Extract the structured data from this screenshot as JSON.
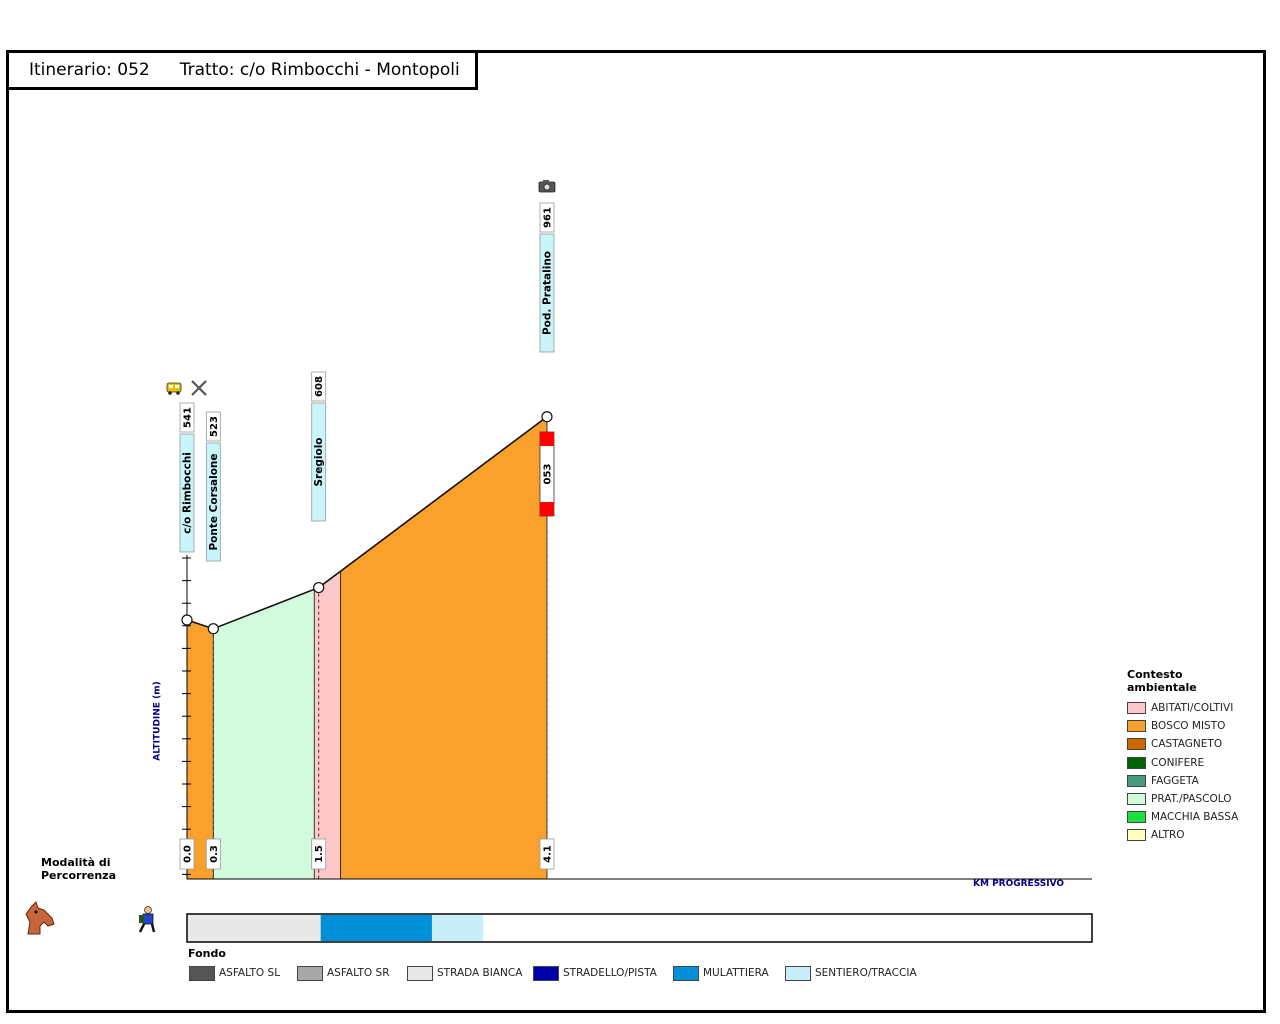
{
  "header": {
    "itinerary": "Itinerario: 052",
    "stretch": "Tratto: c/o Rimbocchi - Montopoli"
  },
  "chart_data": {
    "type": "area",
    "xlabel": "KM PROGRESSIVO",
    "ylabel": "ALTITUDINE (m)",
    "points": [
      {
        "km": 0.0,
        "km_label": "0.0",
        "altitude": 541,
        "name": "c/o Rimbocchi",
        "icons": [
          "bus-icon",
          "crossed-tools-icon"
        ]
      },
      {
        "km": 0.3,
        "km_label": "0.3",
        "altitude": 523,
        "name": "Ponte Corsalone",
        "icons": []
      },
      {
        "km": 1.5,
        "km_label": "1.5",
        "altitude": 608,
        "name": "Sregiolo",
        "icons": []
      },
      {
        "km": 4.1,
        "km_label": "4.1",
        "altitude": 961,
        "name": "Pod. Pratalino",
        "icons": [
          "camera-icon"
        ]
      }
    ],
    "ambient_segments": [
      {
        "from_km": 0.0,
        "to_km": 0.3,
        "category": "BOSCO MISTO"
      },
      {
        "from_km": 0.3,
        "to_km": 1.45,
        "category": "PRAT./PASCOLO"
      },
      {
        "from_km": 1.45,
        "to_km": 1.75,
        "category": "ABITATI/COLTIVI"
      },
      {
        "from_km": 1.75,
        "to_km": 4.1,
        "category": "BOSCO MISTO"
      }
    ],
    "fondo_segments": [
      {
        "from_km": 0.0,
        "to_km": 1.55,
        "category": "STRADA BIANCA"
      },
      {
        "from_km": 1.55,
        "to_km": 2.85,
        "category": "MULATTIERA"
      },
      {
        "from_km": 2.85,
        "to_km": 3.45,
        "category": "SENTIERO/TRACCIA"
      }
    ],
    "connection": {
      "km": 4.1,
      "label": "053",
      "color": "#ff0000"
    }
  },
  "legend_ambient": {
    "title_line1": "Contesto",
    "title_line2": "ambientale",
    "items": [
      {
        "label": "ABITATI/COLTIVI",
        "color": "#ffc8c8"
      },
      {
        "label": "BOSCO MISTO",
        "color": "#f9a12c"
      },
      {
        "label": "CASTAGNETO",
        "color": "#cc6600"
      },
      {
        "label": "CONIFERE",
        "color": "#006400"
      },
      {
        "label": "FAGGETA",
        "color": "#4a9a80"
      },
      {
        "label": "PRAT./PASCOLO",
        "color": "#d2fadc"
      },
      {
        "label": "MACCHIA BASSA",
        "color": "#20e040"
      },
      {
        "label": "ALTRO",
        "color": "#ffffc0"
      }
    ]
  },
  "legend_fondo": {
    "title": "Fondo",
    "items": [
      {
        "label": "ASFALTO SL",
        "color": "#555555"
      },
      {
        "label": "ASFALTO SR",
        "color": "#a8a8a8"
      },
      {
        "label": "STRADA BIANCA",
        "color": "#e8e8e8"
      },
      {
        "label": "STRADELLO/PISTA",
        "color": "#0000aa"
      },
      {
        "label": "MULATTIERA",
        "color": "#0090d8"
      },
      {
        "label": "SENTIERO/TRACCIA",
        "color": "#c8eefa"
      }
    ]
  },
  "modes": {
    "title_line1": "Modalità di",
    "title_line2": "Percorrenza",
    "icons": [
      "horse-icon",
      "hiker-icon"
    ]
  }
}
